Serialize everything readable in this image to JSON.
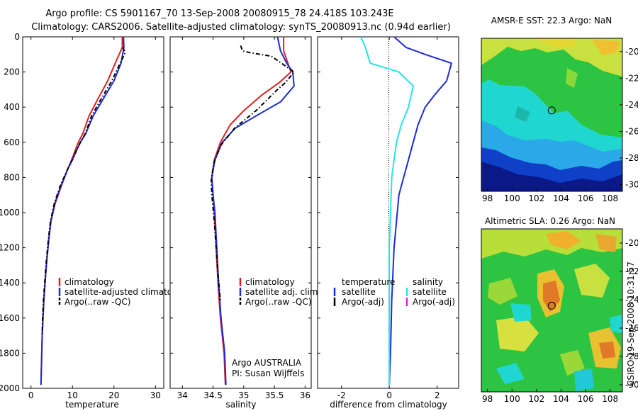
{
  "header": {
    "line1": "Argo profile: CS 5901167_70 13-Sep-2008 20080915_78 24.418S 103.243E",
    "line2": "Climatology: CARS2006. Satellite-adjusted climatology: synTS_20080913.nc (0.94d earlier)"
  },
  "credit": "CSIRO 19-Sep-2008 10:31:57",
  "colors": {
    "red": "#e02020",
    "blue": "#1e2ad8",
    "black": "#000000",
    "cyan": "#22e6ea",
    "magenta": "#e020e0"
  },
  "chart_data": [
    {
      "type": "line",
      "id": "temperature",
      "xlabel": "temperature",
      "ylabel": "",
      "xlim": [
        -2,
        32
      ],
      "ylim": [
        2000,
        0
      ],
      "xticks": [
        0,
        10,
        20,
        30
      ],
      "yticks": [
        0,
        200,
        400,
        600,
        800,
        1000,
        1200,
        1400,
        1600,
        1800,
        2000
      ],
      "legend": [
        "climatology",
        "satellite-adjusted climatology",
        "Argo(..raw -QC)"
      ],
      "series": [
        {
          "name": "climatology",
          "color": "#e02020",
          "style": "solid",
          "x": [
            22.0,
            22.0,
            20.3,
            18.5,
            16.2,
            14.0,
            12.5,
            11.4,
            10.6,
            9.8,
            8.9,
            7.3,
            5.8,
            4.8,
            4.3,
            3.7,
            3.4,
            3.1,
            2.9,
            2.7,
            2.6,
            2.4
          ],
          "y": [
            0,
            60,
            150,
            250,
            350,
            450,
            550,
            600,
            650,
            700,
            750,
            850,
            950,
            1050,
            1150,
            1300,
            1400,
            1500,
            1600,
            1700,
            1800,
            1980
          ]
        },
        {
          "name": "satellite-adjusted climatology",
          "color": "#1e2ad8",
          "style": "solid",
          "x": [
            22.3,
            22.4,
            21.7,
            20.0,
            17.5,
            15.0,
            13.2,
            11.9,
            10.9,
            10.0,
            8.9,
            7.2,
            5.7,
            4.8,
            4.3,
            3.7,
            3.4,
            3.1,
            2.9,
            2.7,
            2.6,
            2.4
          ],
          "y": [
            0,
            60,
            150,
            250,
            350,
            450,
            550,
            600,
            650,
            700,
            750,
            850,
            950,
            1050,
            1150,
            1300,
            1400,
            1500,
            1600,
            1700,
            1800,
            1980
          ]
        },
        {
          "name": "Argo(..raw -QC)",
          "color": "#000000",
          "style": "dashdot",
          "x": [
            22.1,
            22.7,
            21.5,
            19.5,
            17.0,
            14.6,
            13.1,
            11.9,
            10.9,
            9.9,
            8.9,
            7.0,
            5.6,
            4.7,
            4.2,
            3.6,
            3.3,
            3.0,
            2.8,
            2.7
          ],
          "y": [
            60,
            90,
            150,
            250,
            350,
            450,
            550,
            600,
            650,
            700,
            750,
            850,
            950,
            1050,
            1150,
            1300,
            1400,
            1500,
            1600,
            1700
          ]
        }
      ]
    },
    {
      "type": "line",
      "id": "salinity",
      "xlabel": "salinity",
      "ylabel": "",
      "xlim": [
        33.8,
        36.1
      ],
      "ylim": [
        2000,
        0
      ],
      "xticks": [
        34,
        34.5,
        35,
        35.5,
        36
      ],
      "yticks": [
        0,
        200,
        400,
        600,
        800,
        1000,
        1200,
        1400,
        1600,
        1800,
        2000
      ],
      "legend": [
        "climatology",
        "satellite adj. clim.",
        "Argo(..raw -QC)"
      ],
      "annotation": [
        "Argo AUSTRALIA",
        "PI: Susan Wijffels"
      ],
      "series": [
        {
          "name": "climatology",
          "color": "#e02020",
          "style": "solid",
          "x": [
            35.65,
            35.65,
            35.72,
            35.77,
            35.58,
            35.3,
            35.0,
            34.78,
            34.62,
            34.52,
            34.48,
            34.5,
            34.52,
            34.55,
            34.58,
            34.62,
            34.65,
            34.68,
            34.7
          ],
          "y": [
            0,
            80,
            150,
            200,
            260,
            330,
            420,
            500,
            600,
            700,
            800,
            900,
            1000,
            1200,
            1400,
            1600,
            1700,
            1800,
            1980
          ]
        },
        {
          "name": "satellite adj. clim.",
          "color": "#1e2ad8",
          "style": "solid",
          "x": [
            35.55,
            35.6,
            35.7,
            35.8,
            35.82,
            35.6,
            35.2,
            34.86,
            34.65,
            34.53,
            34.48,
            34.5,
            34.53,
            34.56,
            34.59,
            34.63,
            34.66,
            34.69,
            34.71
          ],
          "y": [
            0,
            80,
            150,
            200,
            280,
            370,
            450,
            520,
            600,
            700,
            800,
            900,
            1000,
            1200,
            1400,
            1600,
            1700,
            1800,
            1980
          ]
        },
        {
          "name": "Argo(..raw -QC)",
          "color": "#000000",
          "style": "dashdot",
          "x": [
            34.95,
            34.98,
            35.1,
            35.45,
            35.82,
            35.68,
            35.55,
            35.2,
            34.85,
            34.62,
            34.51,
            34.47,
            34.48,
            34.52,
            34.55,
            34.58,
            34.62
          ],
          "y": [
            50,
            80,
            90,
            110,
            200,
            260,
            300,
            420,
            520,
            620,
            720,
            820,
            900,
            1050,
            1200,
            1350,
            1500
          ]
        }
      ]
    },
    {
      "type": "line",
      "id": "difference",
      "xlabel": "difference from climatology",
      "ylabel": "",
      "xlim": [
        -3.0,
        2.9
      ],
      "ylim": [
        2000,
        0
      ],
      "xticks": [
        -2,
        0,
        2
      ],
      "yticks": [
        0,
        200,
        400,
        600,
        800,
        1000,
        1200,
        1400,
        1600,
        1800,
        2000
      ],
      "legend": [
        "temperature",
        "satellite",
        "Argo(-adj)",
        "salinity",
        "satellite",
        "Argo(-adj)"
      ],
      "series": [
        {
          "name": "satellite",
          "group": "temperature",
          "color": "#1e2ad8",
          "style": "solid",
          "x": [
            0.2,
            0.7,
            1.5,
            2.6,
            2.4,
            1.9,
            1.5,
            1.2,
            1.0,
            0.8,
            0.6,
            0.4,
            0.3,
            0.2,
            0.1,
            0.05,
            0.0
          ],
          "y": [
            0,
            60,
            100,
            150,
            250,
            330,
            400,
            500,
            600,
            700,
            800,
            900,
            1050,
            1200,
            1500,
            1800,
            1980
          ]
        },
        {
          "name": "satellite",
          "group": "salinity",
          "color": "#22e6ea",
          "style": "solid",
          "x": [
            -1.2,
            -1.0,
            -0.8,
            0.4,
            1.0,
            0.8,
            0.5,
            0.3,
            0.2,
            0.1,
            0.05,
            0.0,
            0.0,
            0.0
          ],
          "y": [
            0,
            60,
            150,
            200,
            280,
            400,
            500,
            600,
            700,
            800,
            1000,
            1200,
            1600,
            1980
          ]
        }
      ]
    },
    {
      "type": "heatmap",
      "id": "sst-map",
      "title": "AMSR-E SST: 22.3 Argo: NaN",
      "xlim": [
        97.5,
        109
      ],
      "ylim": [
        -30.5,
        -19
      ],
      "xticks": [
        98,
        100,
        102,
        104,
        106,
        108
      ],
      "yticks": [
        -20,
        -22,
        -24,
        -26,
        -28,
        -30
      ],
      "marker": {
        "lon": 103.24,
        "lat": -24.42
      }
    },
    {
      "type": "heatmap",
      "id": "sla-map",
      "title": "Altimetric SLA: 0.26 Argo: NaN",
      "xlim": [
        97.5,
        109
      ],
      "ylim": [
        -30.5,
        -19
      ],
      "xticks": [
        98,
        100,
        102,
        104,
        106,
        108
      ],
      "yticks": [
        -20,
        -22,
        -24,
        -26,
        -28,
        -30
      ],
      "marker": {
        "lon": 103.24,
        "lat": -24.42
      }
    }
  ]
}
